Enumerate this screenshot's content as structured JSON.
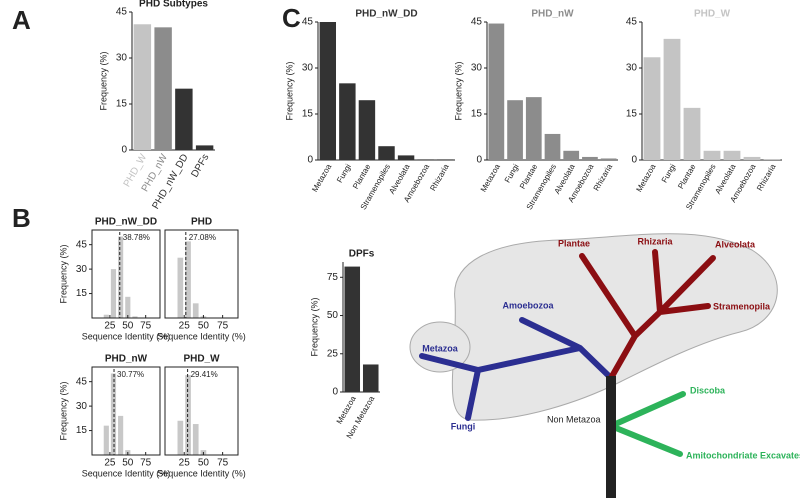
{
  "panel_labels": [
    "A",
    "B",
    "C"
  ],
  "chart_data": [
    {
      "type": "bar",
      "title": "PHD Subtypes",
      "ylabel": "Frequency (%)",
      "categories": [
        "PHD_W",
        "PHD_nW",
        "PHD_nW_DD",
        "DPFs"
      ],
      "values": [
        41,
        40,
        20,
        1.5
      ],
      "colors": [
        "#c4c4c4",
        "#8c8c8c",
        "#333333",
        "#333333"
      ],
      "ylim": [
        0,
        45
      ],
      "yticks": [
        0,
        15,
        30,
        45
      ]
    },
    {
      "type": "histogram",
      "title": "PHD_nW_DD",
      "ylabel": "Frequency (%)",
      "xlabel": "Sequence Identity (%)",
      "bins": [
        5,
        15,
        25,
        35,
        45,
        55,
        65
      ],
      "values": [
        0,
        2,
        30,
        50,
        13,
        1
      ],
      "color": "#c8c8c8",
      "xlim": [
        0,
        95
      ],
      "xticks": [
        25,
        50,
        75
      ],
      "ylim": [
        0,
        54
      ],
      "yticks": [
        15,
        30,
        45
      ],
      "vline": {
        "value": 38.78,
        "label": "38.78%"
      }
    },
    {
      "type": "histogram",
      "title": "PHD",
      "xlabel": "Sequence Identity (%)",
      "bins": [
        5,
        15,
        25,
        35,
        45,
        55,
        65
      ],
      "values": [
        0,
        37,
        47,
        9,
        1,
        0
      ],
      "color": "#c8c8c8",
      "xlim": [
        0,
        95
      ],
      "xticks": [
        25,
        50,
        75
      ],
      "ylim": [
        0,
        54
      ],
      "vline": {
        "value": 27.08,
        "label": "27.08%"
      }
    },
    {
      "type": "histogram",
      "title": "PHD_nW",
      "ylabel": "Frequency (%)",
      "xlabel": "Sequence Identity (%)",
      "bins": [
        5,
        15,
        25,
        35,
        45,
        55,
        65
      ],
      "values": [
        0,
        18,
        50,
        24,
        3,
        0
      ],
      "color": "#c8c8c8",
      "xlim": [
        0,
        95
      ],
      "xticks": [
        25,
        50,
        75
      ],
      "ylim": [
        0,
        54
      ],
      "yticks": [
        15,
        30,
        45
      ],
      "vline": {
        "value": 30.77,
        "label": "30.77%"
      }
    },
    {
      "type": "histogram",
      "title": "PHD_W",
      "xlabel": "Sequence Identity (%)",
      "bins": [
        5,
        15,
        25,
        35,
        45,
        55,
        65
      ],
      "values": [
        0,
        21,
        49,
        19,
        3,
        0
      ],
      "color": "#c8c8c8",
      "xlim": [
        0,
        95
      ],
      "xticks": [
        25,
        50,
        75
      ],
      "ylim": [
        0,
        54
      ],
      "vline": {
        "value": 29.41,
        "label": "29.41%"
      }
    },
    {
      "type": "bar",
      "title": "PHD_nW_DD",
      "title_color": "#333333",
      "ylabel": "Frequency (%)",
      "categories": [
        "Metazoa",
        "Fungi",
        "Plantae",
        "Stramenopiles",
        "Alveolata",
        "Amoebozoa",
        "Rhizaria"
      ],
      "values": [
        45,
        25,
        19.5,
        4.5,
        1.5,
        0.2,
        0.2
      ],
      "color": "#333333",
      "ylim": [
        0,
        45
      ],
      "yticks": [
        0,
        15,
        30,
        45
      ]
    },
    {
      "type": "bar",
      "title": "PHD_nW",
      "title_color": "#8c8c8c",
      "ylabel": "Frequency (%)",
      "categories": [
        "Metazoa",
        "Fungi",
        "Plantae",
        "Stramenopiles",
        "Alveolata",
        "Amoebozoa",
        "Rhizaria"
      ],
      "values": [
        44.5,
        19.5,
        20.5,
        8.5,
        3,
        1,
        0.5
      ],
      "color": "#8c8c8c",
      "ylim": [
        0,
        45
      ],
      "yticks": [
        0,
        15,
        30,
        45
      ]
    },
    {
      "type": "bar",
      "title": "PHD_W",
      "title_color": "#c4c4c4",
      "categories": [
        "Metazoa",
        "Fungi",
        "Plantae",
        "Stramenopiles",
        "Alveolata",
        "Amoebozoa",
        "Rhizaria"
      ],
      "values": [
        33.5,
        39.5,
        17,
        3,
        3,
        1,
        0.3
      ],
      "color": "#c4c4c4",
      "ylim": [
        0,
        45
      ],
      "yticks": [
        0,
        15,
        30,
        45
      ]
    },
    {
      "type": "bar",
      "title": "DPFs",
      "ylabel": "Frequency (%)",
      "categories": [
        "Metazoa",
        "Non Metazoa"
      ],
      "values": [
        82,
        18
      ],
      "color": "#333333",
      "ylim": [
        0,
        85
      ],
      "yticks": [
        0,
        25,
        50,
        75
      ]
    }
  ],
  "tree": {
    "clades": [
      "Metazoa",
      "Fungi",
      "Amoebozoa",
      "Plantae",
      "Rhizaria",
      "Alveolata",
      "Stramenopila",
      "Discoba",
      "Amitochondriate Excavates"
    ],
    "root_label": "Non Metazoa"
  }
}
